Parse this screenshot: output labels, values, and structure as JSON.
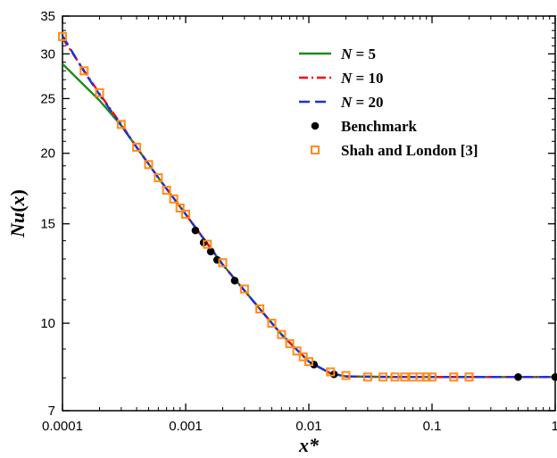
{
  "chart_data": {
    "type": "line",
    "xlabel": "x*",
    "ylabel_parts": [
      "Nu",
      "(",
      "x",
      ")"
    ],
    "x_scale": "log",
    "y_scale": "log",
    "xlim": [
      0.0001,
      1
    ],
    "ylim": [
      7,
      35
    ],
    "x_ticks": [
      0.0001,
      0.001,
      0.01,
      0.1,
      1
    ],
    "x_tick_labels": [
      "0.0001",
      "0.001",
      "0.01",
      "0.1",
      "1"
    ],
    "y_ticks": [
      7,
      10,
      15,
      20,
      25,
      30,
      35
    ],
    "y_tick_labels": [
      "7",
      "10",
      "15",
      "20",
      "25",
      "30",
      "35"
    ],
    "grid": false,
    "legend_position": "top-right",
    "series": [
      {
        "name": "N = 5",
        "label_var": "N",
        "label_rest": " = 5",
        "style": "solid",
        "color": "#1e8a1e",
        "x": [
          0.0001,
          0.0002,
          0.0003,
          0.0004,
          0.0006,
          0.001,
          0.002,
          0.004,
          0.006,
          0.01,
          0.015,
          0.02,
          0.05,
          0.1,
          0.5,
          1
        ],
        "y": [
          28.8,
          24.8,
          22.4,
          20.5,
          18.1,
          15.6,
          12.7,
          10.6,
          9.55,
          8.55,
          8.15,
          8.05,
          8.03,
          8.03,
          8.03,
          8.03
        ]
      },
      {
        "name": "N = 10",
        "label_var": "N",
        "label_rest": " = 10",
        "style": "dashdot",
        "color": "#ff0000",
        "x": [
          0.0001,
          0.00015,
          0.0002,
          0.0003,
          0.0004,
          0.0006,
          0.001,
          0.002,
          0.004,
          0.006,
          0.01,
          0.015,
          0.02,
          0.05,
          0.1,
          0.5,
          1
        ],
        "y": [
          32.0,
          28.0,
          25.5,
          22.5,
          20.5,
          18.1,
          15.6,
          12.7,
          10.6,
          9.55,
          8.55,
          8.15,
          8.05,
          8.03,
          8.03,
          8.03,
          8.03
        ]
      },
      {
        "name": "N = 20",
        "label_var": "N",
        "label_rest": " = 20",
        "style": "dashed",
        "color": "#1f2fd6",
        "x": [
          0.0001,
          0.00015,
          0.0002,
          0.0003,
          0.0004,
          0.0006,
          0.001,
          0.002,
          0.004,
          0.006,
          0.01,
          0.015,
          0.02,
          0.05,
          0.1,
          0.5,
          1
        ],
        "y": [
          32.3,
          27.9,
          25.4,
          22.4,
          20.5,
          18.1,
          15.6,
          12.7,
          10.6,
          9.55,
          8.55,
          8.15,
          8.05,
          8.03,
          8.03,
          8.03,
          8.03
        ]
      }
    ],
    "markers": [
      {
        "name": "Benchmark",
        "marker": "circle",
        "color": "#000000",
        "x": [
          0.0012,
          0.0014,
          0.0016,
          0.0018,
          0.0025,
          0.011,
          0.016,
          0.5,
          1
        ],
        "y": [
          14.6,
          13.9,
          13.4,
          12.95,
          11.9,
          8.45,
          8.12,
          8.03,
          8.03
        ]
      },
      {
        "name": "Shah and London [3]",
        "marker": "square",
        "color": "#ff8c1a",
        "x": [
          0.0001,
          0.00015,
          0.0002,
          0.0003,
          0.0004,
          0.0005,
          0.0006,
          0.0007,
          0.0008,
          0.0009,
          0.001,
          0.0015,
          0.002,
          0.003,
          0.004,
          0.005,
          0.006,
          0.007,
          0.008,
          0.009,
          0.01,
          0.015,
          0.02,
          0.03,
          0.04,
          0.05,
          0.06,
          0.07,
          0.08,
          0.09,
          0.1,
          0.15,
          0.2
        ],
        "y": [
          32.2,
          28.0,
          25.6,
          22.5,
          20.5,
          19.1,
          18.1,
          17.2,
          16.6,
          16.0,
          15.6,
          13.8,
          12.8,
          11.5,
          10.6,
          10.0,
          9.55,
          9.2,
          8.93,
          8.72,
          8.55,
          8.2,
          8.08,
          8.03,
          8.03,
          8.03,
          8.03,
          8.03,
          8.03,
          8.03,
          8.03,
          8.03,
          8.03
        ]
      }
    ]
  }
}
